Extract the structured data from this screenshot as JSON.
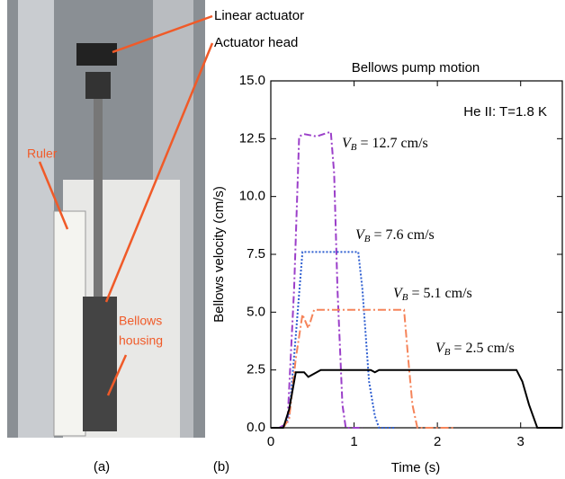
{
  "photo": {
    "panel_label": "(a)",
    "linear_actuator": "Linear actuator",
    "actuator_head": "Actuator head",
    "ruler": "Ruler",
    "bellows_housing": [
      "Bellows",
      "housing"
    ]
  },
  "chart_data": {
    "type": "line",
    "panel_label": "(b)",
    "title": "Bellows pump motion",
    "annotation": "He II: T=1.8 K",
    "xlabel": "Time (s)",
    "ylabel": "Bellows velocity (cm/s)",
    "xlim": [
      0,
      3.5
    ],
    "xticks": [
      0,
      1,
      2,
      3
    ],
    "ylim": [
      0,
      15
    ],
    "yticks": [
      {
        "value": 0,
        "label": "0.0"
      },
      2.5,
      {
        "value": 5,
        "label": "5.0"
      },
      7.5,
      {
        "value": 10,
        "label": "10.0"
      },
      12.5,
      {
        "value": 15,
        "label": "15.0"
      }
    ],
    "series": [
      {
        "name": "VB = 12.7 cm/s",
        "color": "#9b3fc9",
        "dash": "8 3 2 3",
        "x": [
          0.1,
          0.2,
          0.28,
          0.34,
          0.4,
          0.55,
          0.72,
          0.76,
          0.8,
          0.86,
          0.9,
          1.1
        ],
        "values": [
          0,
          0.2,
          6,
          12.6,
          12.7,
          12.6,
          12.8,
          11,
          6,
          1,
          0,
          0
        ]
      },
      {
        "name": "VB = 7.6 cm/s",
        "color": "#2f5fd0",
        "dash": "2 2",
        "x": [
          0.15,
          0.22,
          0.3,
          0.38,
          0.6,
          1.05,
          1.1,
          1.18,
          1.25,
          1.3,
          1.5
        ],
        "values": [
          0,
          0.5,
          4,
          7.6,
          7.6,
          7.6,
          6,
          2,
          0.5,
          0,
          0
        ]
      },
      {
        "name": "VB = 5.1 cm/s",
        "color": "#f5845a",
        "dash": "9 3 2 3",
        "x": [
          0.15,
          0.22,
          0.3,
          0.38,
          0.45,
          0.52,
          1.0,
          1.6,
          1.65,
          1.7,
          1.76,
          2.2
        ],
        "values": [
          0,
          0.4,
          3,
          4.9,
          4.3,
          5.1,
          5.1,
          5.1,
          3,
          1,
          0,
          0
        ]
      },
      {
        "name": "VB = 2.5 cm/s",
        "color": "#000000",
        "dash": "",
        "x": [
          0,
          0.15,
          0.22,
          0.3,
          0.4,
          0.45,
          0.6,
          1.2,
          1.25,
          1.3,
          2.95,
          3.02,
          3.1,
          3.2,
          3.5
        ],
        "values": [
          0,
          0,
          0.8,
          2.4,
          2.4,
          2.2,
          2.5,
          2.5,
          2.4,
          2.5,
          2.5,
          2,
          1,
          0,
          0
        ]
      }
    ]
  }
}
